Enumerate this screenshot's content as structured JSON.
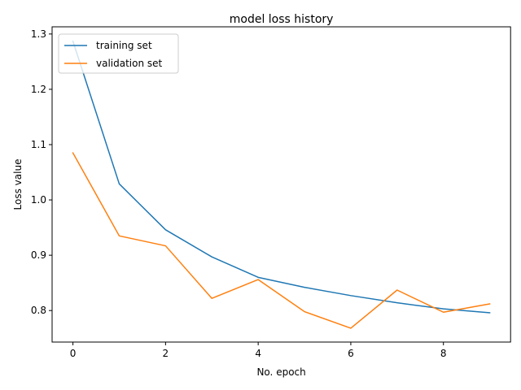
{
  "chart_data": {
    "type": "line",
    "title": "model loss history",
    "xlabel": "No. epoch",
    "ylabel": "Loss value",
    "xlim": [
      -0.45,
      9.45
    ],
    "ylim": [
      0.743,
      1.313
    ],
    "x_ticks": [
      0,
      2,
      4,
      6,
      8
    ],
    "y_ticks": [
      0.8,
      0.9,
      1.0,
      1.1,
      1.2,
      1.3
    ],
    "x_tick_labels": [
      "0",
      "2",
      "4",
      "6",
      "8"
    ],
    "y_tick_labels": [
      "0.8",
      "0.9",
      "1.0",
      "1.1",
      "1.2",
      "1.3"
    ],
    "x": [
      0,
      1,
      2,
      3,
      4,
      5,
      6,
      7,
      8,
      9
    ],
    "series": [
      {
        "name": "training set",
        "color": "#1f77b4",
        "values": [
          1.287,
          1.029,
          0.946,
          0.897,
          0.86,
          0.842,
          0.827,
          0.814,
          0.803,
          0.796
        ]
      },
      {
        "name": "validation set",
        "color": "#ff7f0e",
        "values": [
          1.085,
          0.935,
          0.917,
          0.822,
          0.856,
          0.798,
          0.768,
          0.837,
          0.797,
          0.812
        ]
      }
    ],
    "legend": {
      "position": "upper left"
    },
    "grid": false
  }
}
